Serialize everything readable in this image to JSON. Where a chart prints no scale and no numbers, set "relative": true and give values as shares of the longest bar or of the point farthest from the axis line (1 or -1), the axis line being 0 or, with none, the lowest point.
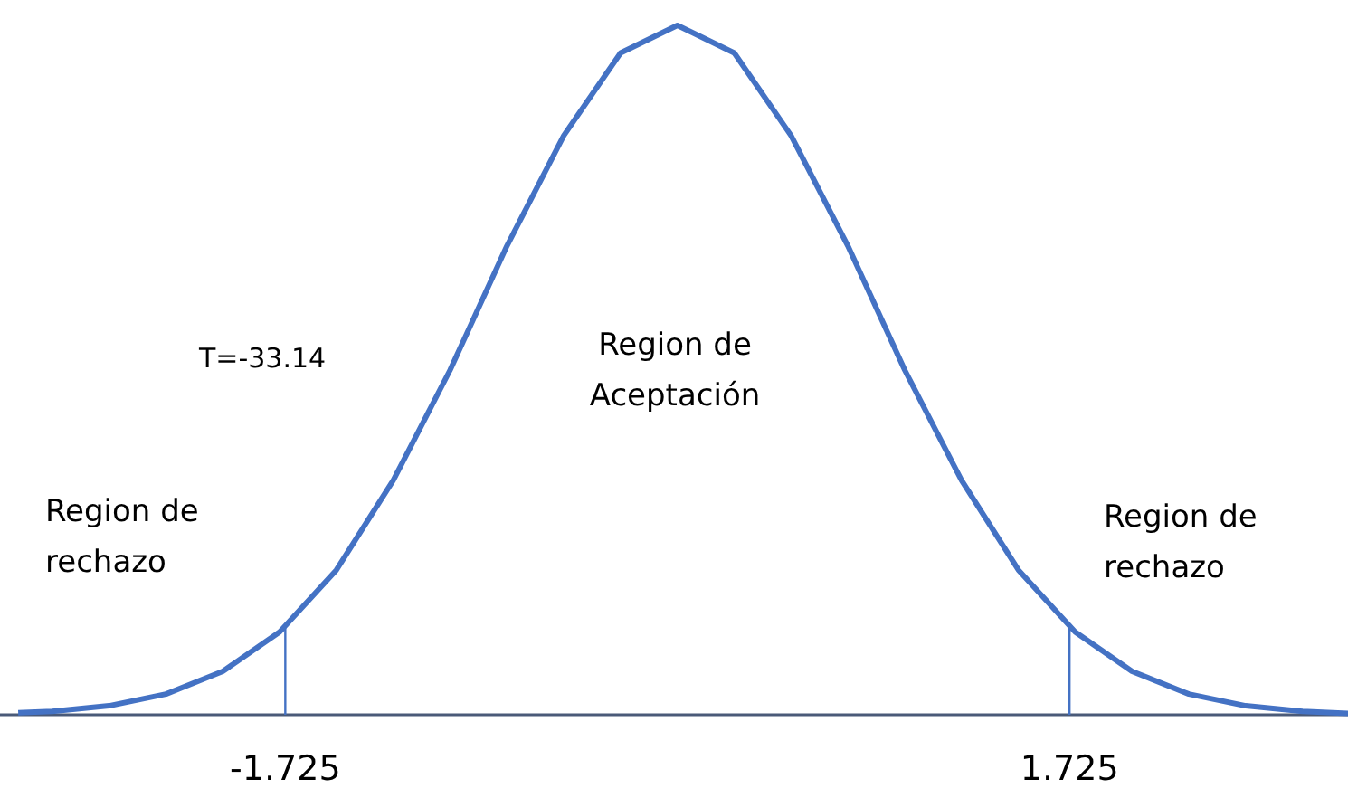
{
  "chart_data": {
    "type": "line",
    "relative": true,
    "x": [
      -2.9,
      -2.75,
      -2.5,
      -2.25,
      -2,
      -1.75,
      -1.5,
      -1.25,
      -1,
      -0.75,
      -0.5,
      -0.25,
      0,
      0.25,
      0.5,
      0.75,
      1,
      1.25,
      1.5,
      1.75,
      2,
      2.25,
      2.5,
      2.75,
      2.95
    ],
    "series": [
      {
        "color": "#4472c4",
        "values": [
          0.003,
          0.005,
          0.013,
          0.03,
          0.063,
          0.12,
          0.21,
          0.34,
          0.5,
          0.68,
          0.84,
          0.96,
          1,
          0.96,
          0.84,
          0.68,
          0.5,
          0.34,
          0.21,
          0.12,
          0.063,
          0.03,
          0.013,
          0.005,
          0.002
        ]
      }
    ],
    "xlim": [
      -2.98,
      2.95
    ],
    "xticks": [
      -1.725,
      1.725
    ],
    "marker": "none",
    "line_style": "solid",
    "grid": false,
    "ref_lines": [
      {
        "axis": "x",
        "value": -1.725,
        "color": "#4472c4"
      },
      {
        "axis": "x",
        "value": 1.725,
        "color": "#4472c4"
      }
    ],
    "annotations": [
      "T=-33.14",
      "Region de Aceptación",
      "Region de rechazo",
      "Region de rechazo"
    ]
  }
}
